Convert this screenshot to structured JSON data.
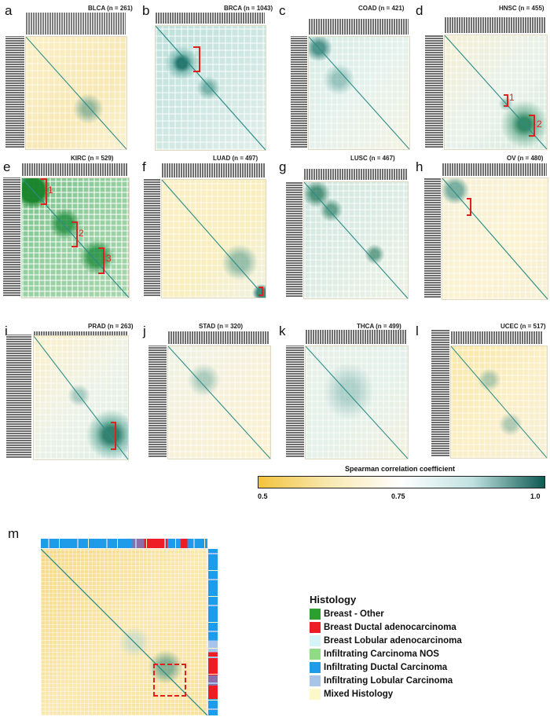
{
  "panels": [
    {
      "letter": "a",
      "title": "BLCA (n = 261)"
    },
    {
      "letter": "b",
      "title": "BRCA (n = 1043)"
    },
    {
      "letter": "c",
      "title": "COAD (n = 421)"
    },
    {
      "letter": "d",
      "title": "HNSC (n = 455)"
    },
    {
      "letter": "e",
      "title": "KIRC (n = 529)"
    },
    {
      "letter": "f",
      "title": "LUAD (n = 497)"
    },
    {
      "letter": "g",
      "title": "LUSC (n = 467)"
    },
    {
      "letter": "h",
      "title": "OV (n = 480)"
    },
    {
      "letter": "i",
      "title": "PRAD (n = 263)"
    },
    {
      "letter": "j",
      "title": "STAD (n = 320)"
    },
    {
      "letter": "k",
      "title": "THCA (n = 499)"
    },
    {
      "letter": "l",
      "title": "UCEC (n = 517)"
    }
  ],
  "brackets": {
    "d1": "1",
    "d2": "2",
    "e1": "1",
    "e2": "2",
    "e3": "3"
  },
  "colorbar": {
    "title": "Spearman correlation coefficient",
    "ticks": [
      "0.5",
      "0.75",
      "1.0"
    ],
    "colors": {
      "low": "#f3c33e",
      "mid": "#ffffff",
      "high": "#0e5a52"
    }
  },
  "panel_m": {
    "letter": "m",
    "legend_title": "Histology",
    "legend": [
      {
        "label": "Breast - Other",
        "color": "#2ca02c"
      },
      {
        "label": "Breast Ductal adenocarcinoma",
        "color": "#ee1c25"
      },
      {
        "label": "Breast Lobular adenocarcinoma",
        "color": "#d4f4f7"
      },
      {
        "label": "Infiltrating Carcinoma NOS",
        "color": "#8fdc84"
      },
      {
        "label": "Infiltrating Ductal Carcinoma",
        "color": "#1e9be9"
      },
      {
        "label": "Infiltrating Lobular Carcinoma",
        "color": "#a8c4e8"
      },
      {
        "label": "Mixed Histology",
        "color": "#fdf8c8"
      }
    ]
  }
}
